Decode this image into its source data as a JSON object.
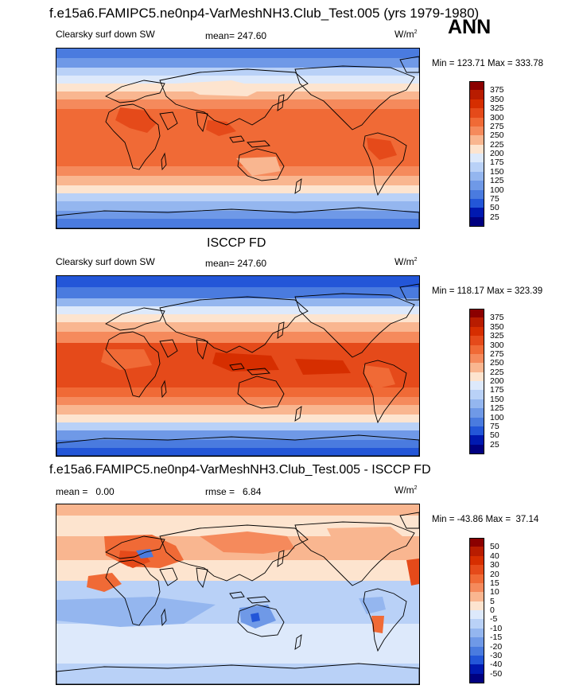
{
  "chart_data": [
    {
      "type": "heatmap",
      "title": "f.e15a6.FAMIPC5.ne0np4-VarMeshNH3.Club_Test.005 (yrs 1979-1980)",
      "season": "ANN",
      "variable": "Clearsky surf down SW",
      "mean_text": "mean= 247.60",
      "units": "W/m",
      "units_sup": "2",
      "minmax_text": "Min = 123.71 Max = 333.78",
      "levels": [
        "375",
        "350",
        "325",
        "300",
        "275",
        "250",
        "225",
        "200",
        "175",
        "150",
        "125",
        "100",
        "75",
        "50",
        "25"
      ],
      "colors": [
        "#8b0000",
        "#b81c00",
        "#d62e00",
        "#e54a1a",
        "#f06a36",
        "#f58a5c",
        "#f9b690",
        "#fde4cf",
        "#dde9fb",
        "#b9d1f7",
        "#94b6ef",
        "#6f99e7",
        "#4a7bdf",
        "#2356d8",
        "#0019b0",
        "#000080"
      ]
    },
    {
      "type": "heatmap",
      "title": "ISCCP FD",
      "variable": "Clearsky surf down SW",
      "mean_text": "mean= 247.60",
      "units": "W/m",
      "units_sup": "2",
      "minmax_text": "Min = 118.17 Max = 323.39",
      "levels": [
        "375",
        "350",
        "325",
        "300",
        "275",
        "250",
        "225",
        "200",
        "175",
        "150",
        "125",
        "100",
        "75",
        "50",
        "25"
      ],
      "colors": [
        "#8b0000",
        "#b81c00",
        "#d62e00",
        "#e54a1a",
        "#f06a36",
        "#f58a5c",
        "#f9b690",
        "#fde4cf",
        "#dde9fb",
        "#b9d1f7",
        "#94b6ef",
        "#6f99e7",
        "#4a7bdf",
        "#2356d8",
        "#0019b0",
        "#000080"
      ]
    },
    {
      "type": "heatmap",
      "title": "f.e15a6.FAMIPC5.ne0np4-VarMeshNH3.Club_Test.005 - ISCCP FD",
      "mean_text": "mean =   0.00",
      "rmse_text": "rmse =   6.84",
      "units": "W/m",
      "units_sup": "2",
      "minmax_text": "Min = -43.86 Max =  37.14",
      "levels": [
        "50",
        "40",
        "30",
        "20",
        "15",
        "10",
        "5",
        "0",
        "-5",
        "-10",
        "-15",
        "-20",
        "-30",
        "-40",
        "-50"
      ],
      "colors": [
        "#8b0000",
        "#b81c00",
        "#d62e00",
        "#e54a1a",
        "#f06a36",
        "#f58a5c",
        "#f9b690",
        "#fde4cf",
        "#dde9fb",
        "#b9d1f7",
        "#94b6ef",
        "#6f99e7",
        "#4a7bdf",
        "#2356d8",
        "#0019b0",
        "#000080"
      ]
    }
  ]
}
